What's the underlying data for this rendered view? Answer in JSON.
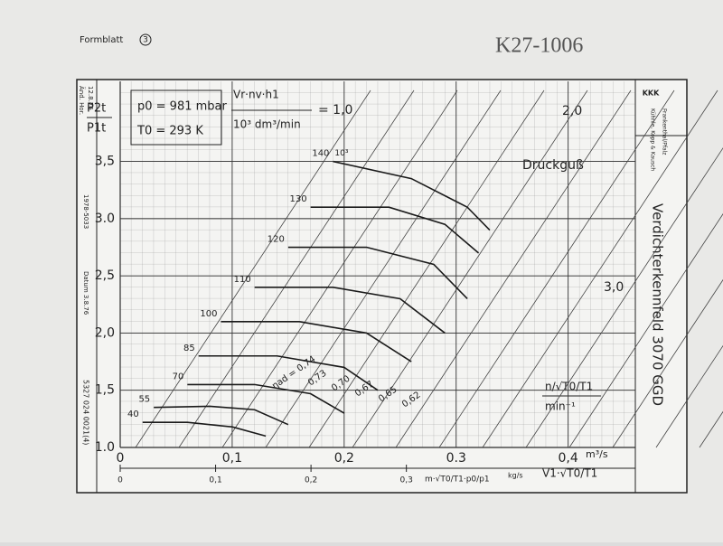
{
  "header": {
    "form": "Formblatt",
    "form_no": "3",
    "handwritten": "K27-1006"
  },
  "margin": [
    "Änd. Hor.",
    "12.8.76",
    "1978-5033",
    "Datum 3.8.76",
    "5327 024 0021(4)"
  ],
  "side": {
    "title": "Verdichterkennfeld 3070 GGD",
    "company": [
      "Kühnle, Kopp & Kausch",
      "Frankenthal/Pfalz"
    ],
    "logo": "KKK"
  },
  "chart_data": {
    "type": "line",
    "conditions": [
      "p0 = 981 mbar",
      "T0 = 293 K"
    ],
    "flow_formula": {
      "numerator": "Vr·nv·h1",
      "denominator": "10³ dm³/min",
      "equals": "= 1,0"
    },
    "flow_labels": [
      "2,0",
      "3,0"
    ],
    "material": "Druckguß",
    "y_label": {
      "top": "P2t",
      "bottom": "P1t"
    },
    "x_label": "V1·√T0/T1",
    "x_unit": "m³/s",
    "x2_label": "m·√T0/T1·p0/p1",
    "x2_unit": "kg/s",
    "speed_label": {
      "top": "n/√T0/T1",
      "bottom": "min⁻¹"
    },
    "speed_unit": "10³",
    "xlim": [
      0,
      0.46
    ],
    "xticks": [
      0,
      {
        "value": 0.1,
        "label": "0,1"
      },
      {
        "value": 0.2,
        "label": "0,2"
      },
      {
        "value": 0.3,
        "label": "0.3"
      },
      {
        "value": 0.4,
        "label": "0,4"
      }
    ],
    "ylim": [
      1.0,
      4.2
    ],
    "yticks": [
      {
        "value": 1.0,
        "label": "1.0"
      },
      {
        "value": 1.5,
        "label": "1,5"
      },
      {
        "value": 2.0,
        "label": "2,0"
      },
      {
        "value": 2.5,
        "label": "2,5"
      },
      {
        "value": 3.0,
        "label": "3.0"
      },
      {
        "value": 3.5,
        "label": "3,5"
      }
    ],
    "x2lim": [
      0,
      0.54
    ],
    "x2ticks": [
      0,
      {
        "value": 0.1,
        "label": "0,1"
      },
      {
        "value": 0.2,
        "label": "0,2"
      },
      {
        "value": 0.3,
        "label": "0,3"
      }
    ],
    "grid": true,
    "series": [
      {
        "name": "40",
        "color": "#1a1a1a",
        "x": [
          0.02,
          0.06,
          0.1,
          0.13
        ],
        "values": [
          1.22,
          1.22,
          1.18,
          1.1
        ]
      },
      {
        "name": "55",
        "color": "#1a1a1a",
        "x": [
          0.03,
          0.08,
          0.12,
          0.15
        ],
        "values": [
          1.35,
          1.36,
          1.33,
          1.2
        ]
      },
      {
        "name": "70",
        "color": "#1a1a1a",
        "x": [
          0.06,
          0.12,
          0.17,
          0.2
        ],
        "values": [
          1.55,
          1.55,
          1.47,
          1.3
        ]
      },
      {
        "name": "85",
        "color": "#1a1a1a",
        "x": [
          0.07,
          0.14,
          0.2,
          0.23
        ],
        "values": [
          1.8,
          1.8,
          1.7,
          1.5
        ]
      },
      {
        "name": "100",
        "color": "#1a1a1a",
        "x": [
          0.09,
          0.16,
          0.22,
          0.26
        ],
        "values": [
          2.1,
          2.1,
          2.0,
          1.75
        ]
      },
      {
        "name": "110",
        "color": "#1a1a1a",
        "x": [
          0.12,
          0.19,
          0.25,
          0.29
        ],
        "values": [
          2.4,
          2.4,
          2.3,
          2.0
        ]
      },
      {
        "name": "120",
        "color": "#1a1a1a",
        "x": [
          0.15,
          0.22,
          0.28,
          0.31
        ],
        "values": [
          2.75,
          2.75,
          2.6,
          2.3
        ]
      },
      {
        "name": "130",
        "color": "#1a1a1a",
        "x": [
          0.17,
          0.24,
          0.29,
          0.32
        ],
        "values": [
          3.1,
          3.1,
          2.95,
          2.7
        ]
      },
      {
        "name": "140",
        "color": "#1a1a1a",
        "x": [
          0.19,
          0.26,
          0.31,
          0.33
        ],
        "values": [
          3.5,
          3.35,
          3.1,
          2.9
        ]
      }
    ],
    "efficiency_labels": [
      "ηad = 0,74",
      "0,73",
      "0,70",
      "0,67",
      "0,65",
      "0,62"
    ]
  }
}
